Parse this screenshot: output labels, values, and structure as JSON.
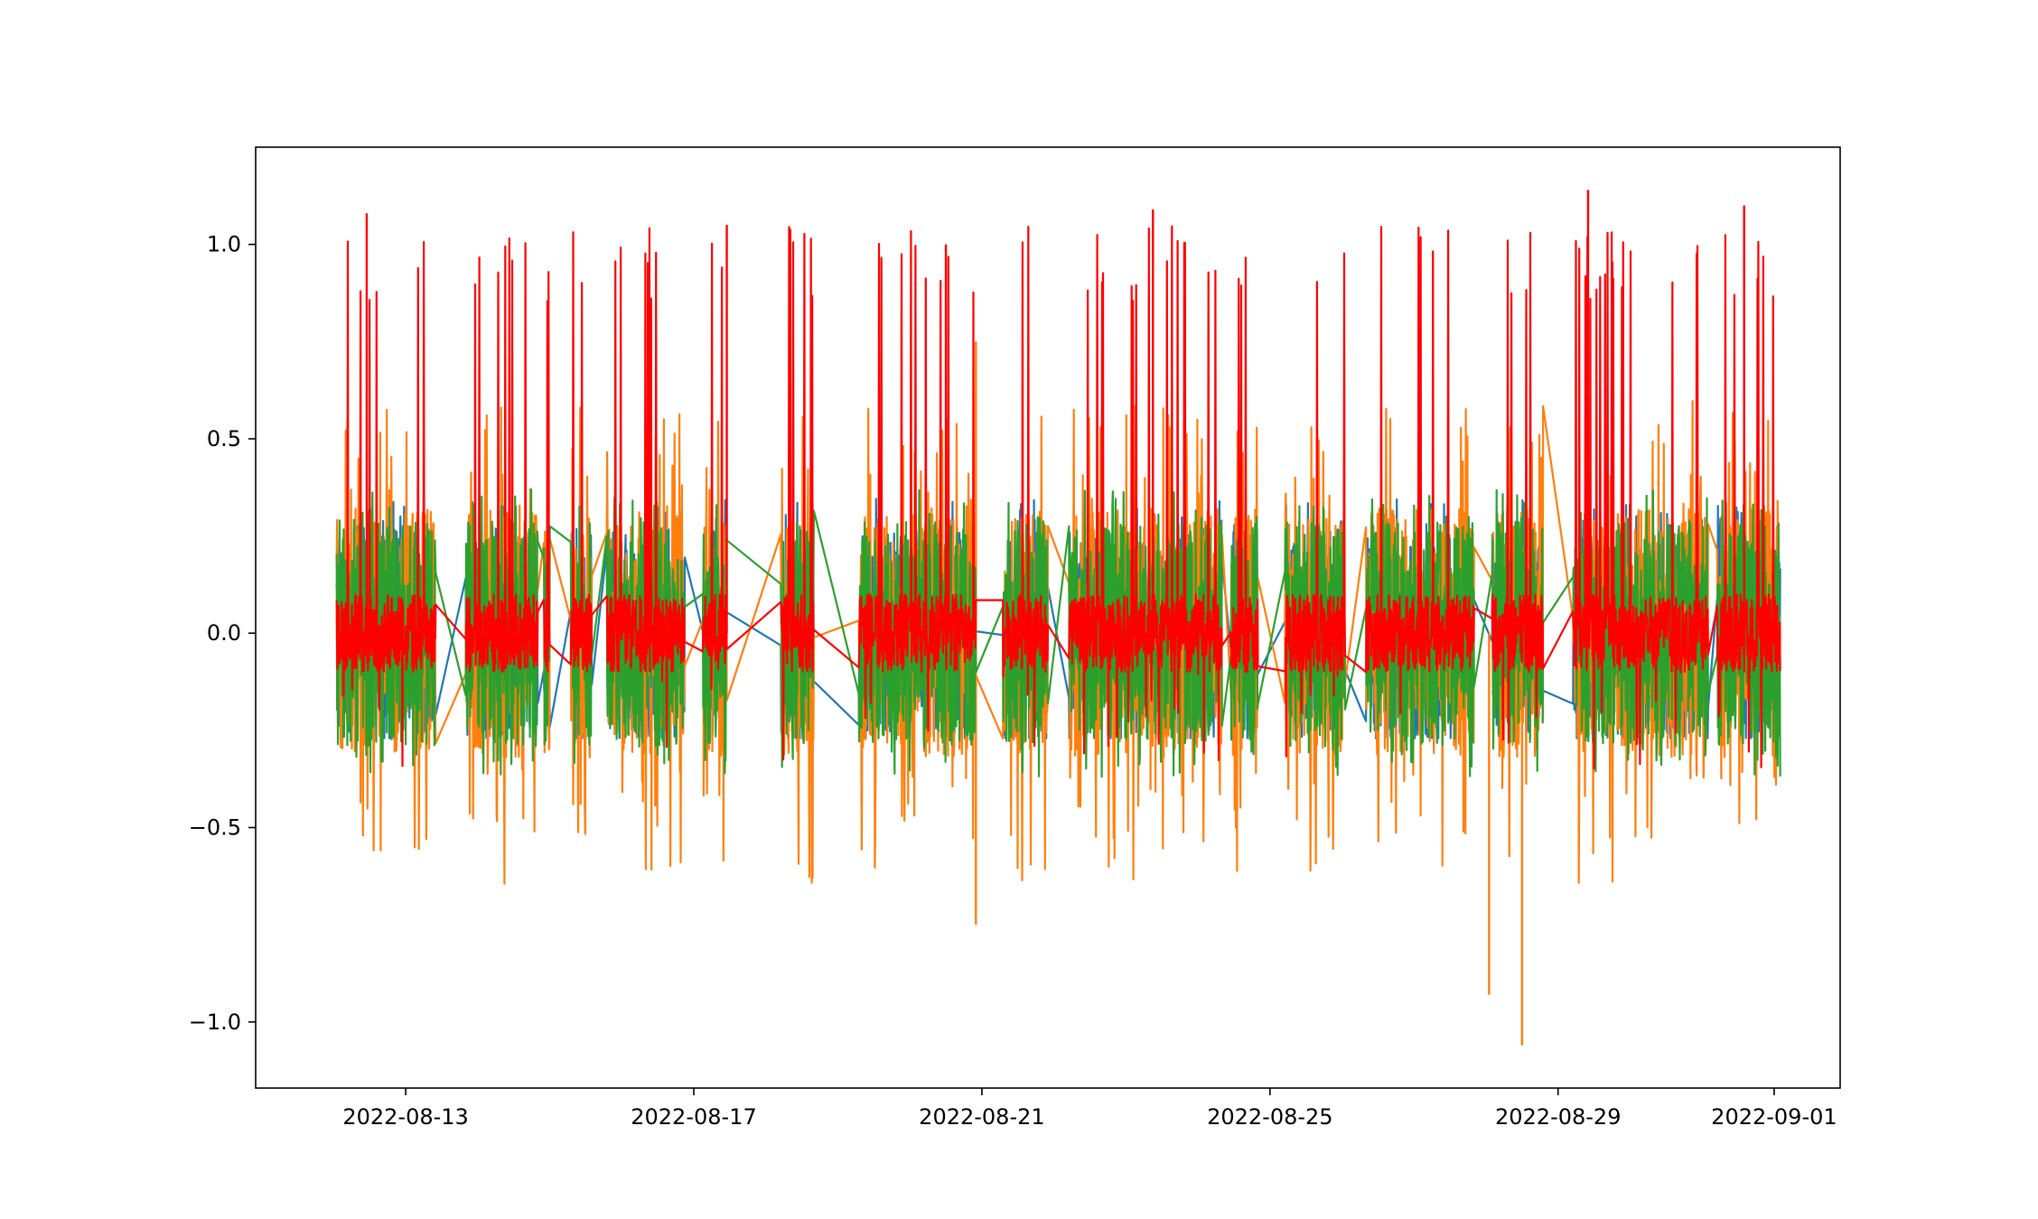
{
  "chart_data": {
    "type": "line",
    "title": "",
    "xlabel": "",
    "ylabel": "",
    "x_axis_type": "date",
    "xlim": [
      "2022-08-10T22:00",
      "2022-09-01T22:00"
    ],
    "ylim": [
      -1.17,
      1.25
    ],
    "xticks": [
      "2022-08-13",
      "2022-08-17",
      "2022-08-21",
      "2022-08-25",
      "2022-08-29",
      "2022-09-01"
    ],
    "yticks": [
      1.0,
      0.5,
      0.0,
      -0.5,
      -1.0
    ],
    "ytick_labels": [
      "1.0",
      "0.5",
      "0.0",
      "−0.5",
      "−1.0"
    ],
    "grid": false,
    "legend": "none",
    "data_segments": [
      [
        "2022-08-12T01:00",
        "2022-08-13T10:00"
      ],
      [
        "2022-08-13T20:00",
        "2022-08-14T20:00"
      ],
      [
        "2022-08-14T22:00",
        "2022-08-15T00:00"
      ],
      [
        "2022-08-15T07:00",
        "2022-08-15T14:00"
      ],
      [
        "2022-08-15T19:00",
        "2022-08-16T21:00"
      ],
      [
        "2022-08-17T03:00",
        "2022-08-17T11:00"
      ],
      [
        "2022-08-18T05:00",
        "2022-08-18T16:00"
      ],
      [
        "2022-08-19T07:00",
        "2022-08-20T22:00"
      ],
      [
        "2022-08-21T07:00",
        "2022-08-21T22:00"
      ],
      [
        "2022-08-22T05:00",
        "2022-08-24T08:00"
      ],
      [
        "2022-08-24T11:00",
        "2022-08-24T20:00"
      ],
      [
        "2022-08-25T05:00",
        "2022-08-26T01:00"
      ],
      [
        "2022-08-26T08:00",
        "2022-08-27T20:00"
      ],
      [
        "2022-08-28T02:00",
        "2022-08-28T19:00"
      ],
      [
        "2022-08-29T05:00",
        "2022-08-31T02:00"
      ],
      [
        "2022-08-31T05:00",
        "2022-09-01T02:00"
      ]
    ],
    "series": [
      {
        "color": "#1f77b4",
        "band": 0.27,
        "ymin": -0.27,
        "ymax": 0.35
      },
      {
        "color": "#ff7f0e",
        "band": 0.32,
        "ymin": -1.06,
        "ymax": 0.73
      },
      {
        "color": "#2ca02c",
        "band": 0.29,
        "ymin": -0.42,
        "ymax": 0.38
      },
      {
        "color": "#ff0000",
        "band": 0.1,
        "ymin": -0.36,
        "ymax": 1.14
      }
    ],
    "annotations": [
      {
        "series": 1,
        "x": "2022-08-28T01:00",
        "y": -0.93
      },
      {
        "series": 1,
        "x": "2022-08-28T12:00",
        "y": -1.06
      },
      {
        "series": 1,
        "x": "2022-08-20T22:00",
        "y": -0.75
      },
      {
        "series": 1,
        "x": "2022-08-20T22:00",
        "y": 0.75
      },
      {
        "series": 3,
        "x": "2022-08-29T10:00",
        "y": 1.14
      },
      {
        "series": 3,
        "x": "2022-08-20T12:00",
        "y": 1.0
      },
      {
        "series": 3,
        "x": "2022-08-12T11:00",
        "y": 1.08
      },
      {
        "series": 3,
        "x": "2022-08-17T11:00",
        "y": 1.05
      },
      {
        "series": 3,
        "x": "2022-08-23T09:00",
        "y": 1.09
      },
      {
        "series": 3,
        "x": "2022-08-31T14:00",
        "y": 1.1
      }
    ]
  }
}
